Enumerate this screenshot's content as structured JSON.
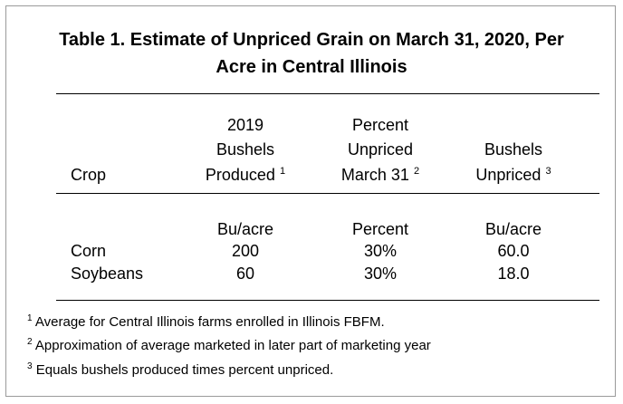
{
  "title_line1": "Table 1. Estimate of Unpriced Grain on March 31, 2020, Per",
  "title_line2": "Acre in Central Illinois",
  "headers": {
    "crop": "Crop",
    "col2_line1": "2019",
    "col2_line2": "Bushels",
    "col2_line3": "Produced",
    "col2_ref": "1",
    "col3_line1": "Percent",
    "col3_line2": "Unpriced",
    "col3_line3": "March 31",
    "col3_ref": "2",
    "col4_line2": "Bushels",
    "col4_line3": "Unpriced",
    "col4_ref": "3"
  },
  "units": {
    "col2": "Bu/acre",
    "col3": "Percent",
    "col4": "Bu/acre"
  },
  "rows": [
    {
      "crop": "Corn",
      "bushels_produced": "200",
      "percent_unpriced": "30%",
      "bushels_unpriced": "60.0"
    },
    {
      "crop": "Soybeans",
      "bushels_produced": "60",
      "percent_unpriced": "30%",
      "bushels_unpriced": "18.0"
    }
  ],
  "footnotes": [
    {
      "mark": "1",
      "text": "Average for Central Illinois farms enrolled in Illinois FBFM."
    },
    {
      "mark": "2",
      "text": "Approximation of average marketed in later part of marketing year"
    },
    {
      "mark": "3",
      "text": "Equals bushels produced times percent unpriced."
    }
  ]
}
